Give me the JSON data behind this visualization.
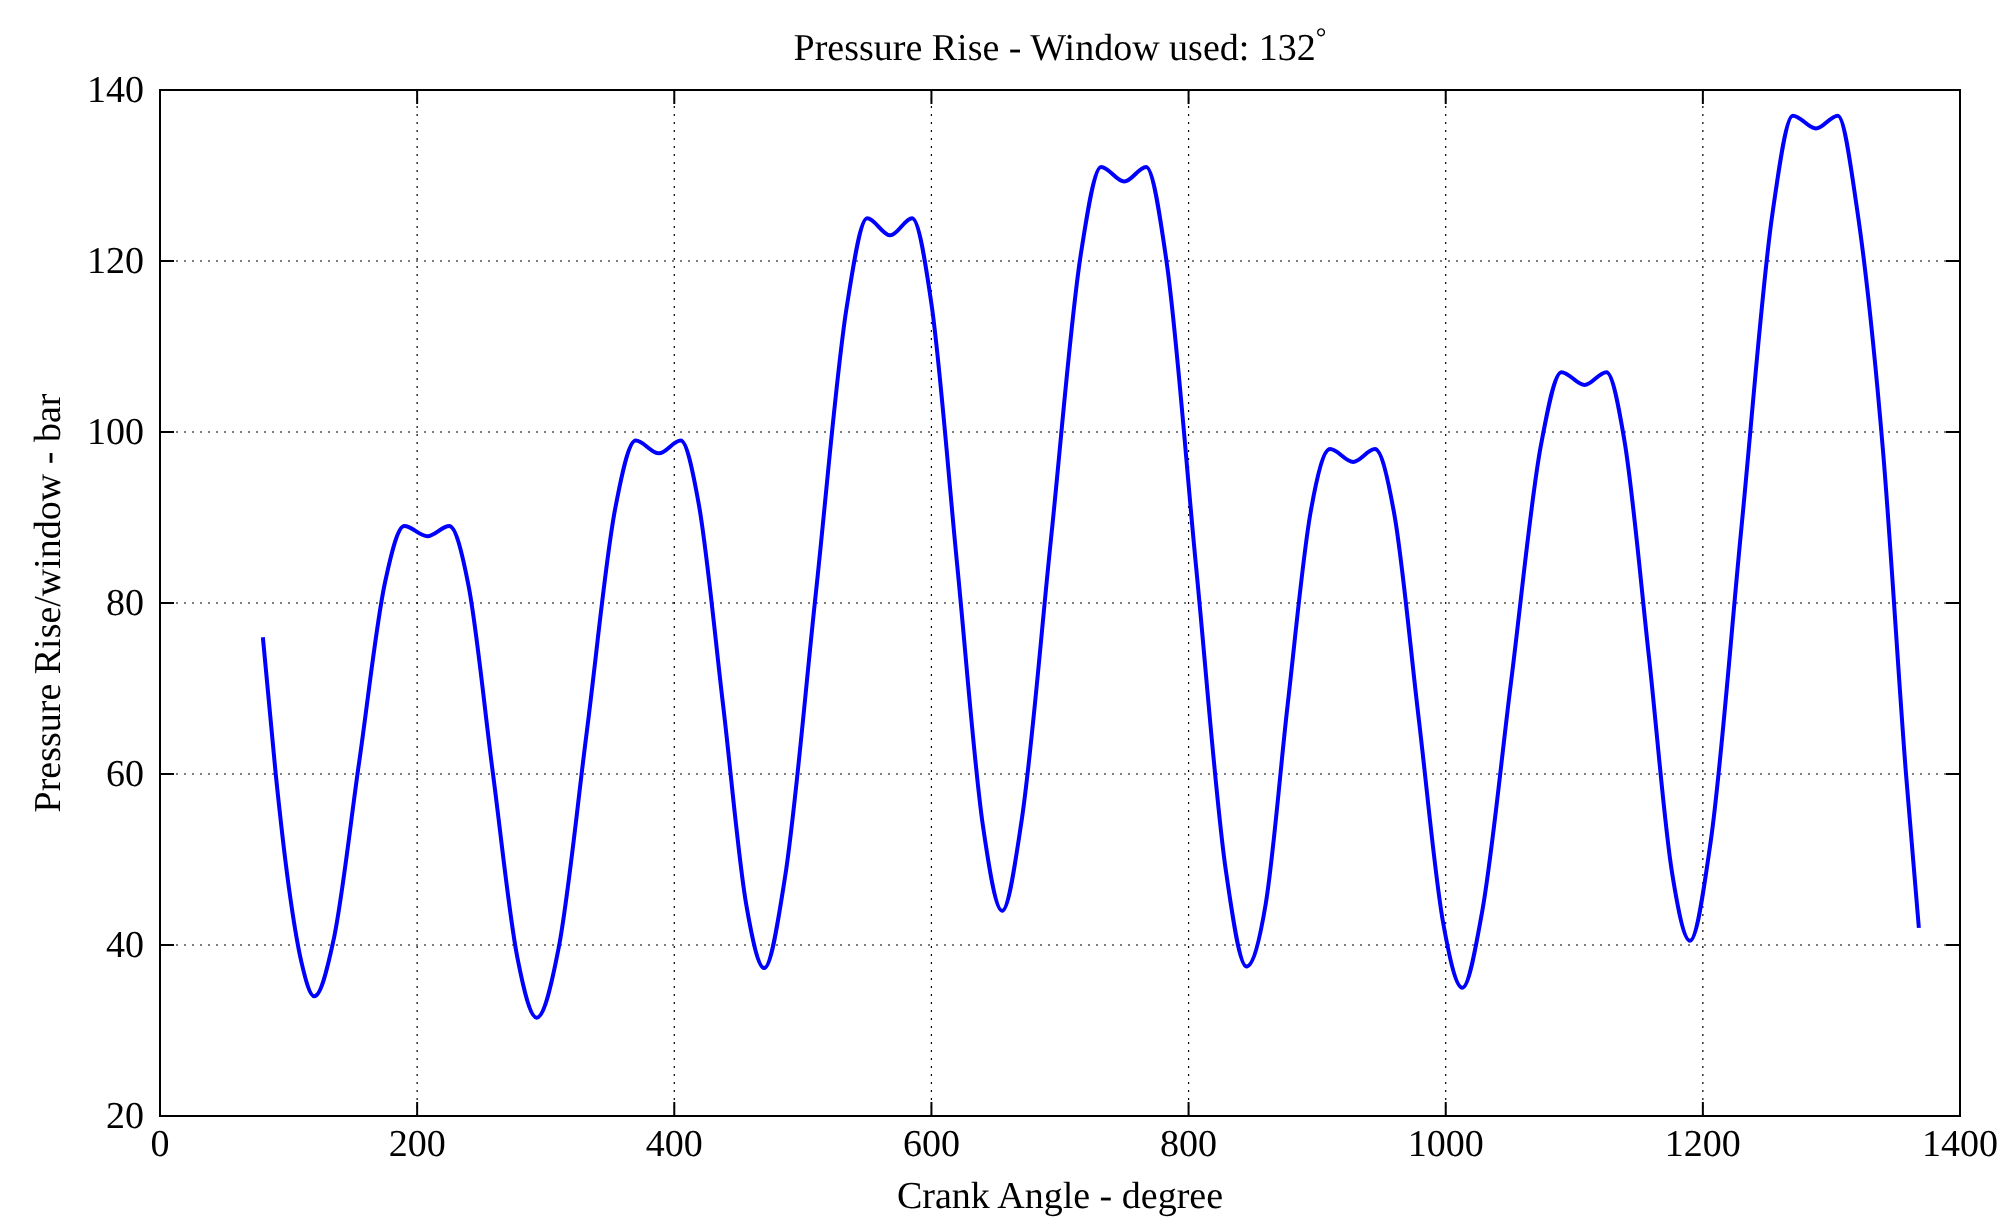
{
  "chart_data": {
    "type": "line",
    "title": "Pressure Rise - Window used: 132$^{°}$",
    "xlabel": "Crank Angle - degree",
    "ylabel": "Pressure Rise/window - bar",
    "x": [
      80,
      90,
      100,
      110,
      120,
      135,
      155,
      175,
      190,
      208,
      225,
      240,
      259,
      278,
      293,
      310,
      332,
      354,
      370,
      388,
      405,
      419,
      438,
      456,
      470,
      486,
      510,
      534,
      550,
      568,
      585,
      600,
      620,
      640,
      655,
      670,
      693,
      716,
      732,
      750,
      767,
      783,
      806,
      829,
      845,
      860,
      877,
      895,
      910,
      928,
      945,
      960,
      979,
      998,
      1013,
      1028,
      1051,
      1074,
      1090,
      1108,
      1125,
      1139,
      1158,
      1176,
      1190,
      1206,
      1230,
      1254,
      1270,
      1288,
      1305,
      1320,
      1340,
      1358,
      1368
    ],
    "series": [
      {
        "color": "#0000ff",
        "values": [
          76,
          60,
          47,
          38,
          34,
          40.6,
          61.5,
          82.4,
          89,
          87.8,
          89,
          82,
          60,
          38.5,
          31.5,
          39.6,
          65,
          91,
          99,
          97.5,
          99,
          91.6,
          68,
          44.7,
          37.3,
          47.8,
          81,
          114.5,
          125,
          123,
          125,
          115,
          84.5,
          54,
          44,
          54.4,
          87.5,
          120.6,
          131,
          129.3,
          131,
          119.8,
          84,
          48.7,
          37.5,
          44.8,
          68,
          90.7,
          98,
          96.5,
          98,
          90.4,
          66.5,
          42.6,
          35,
          43.6,
          71,
          98.4,
          107,
          105.5,
          107,
          99,
          73.8,
          48.5,
          40.5,
          52,
          88.8,
          125.4,
          137,
          135.5,
          137,
          126,
          98,
          60,
          42
        ]
      }
    ],
    "xlim": [
      0,
      1400
    ],
    "xticks": [
      0,
      200,
      400,
      600,
      800,
      1000,
      1200,
      1400
    ],
    "ylim": [
      20,
      140
    ],
    "yticks": [
      20,
      40,
      60,
      80,
      100,
      120,
      140
    ],
    "grid": true,
    "line_style": "solid",
    "marker": "none"
  }
}
